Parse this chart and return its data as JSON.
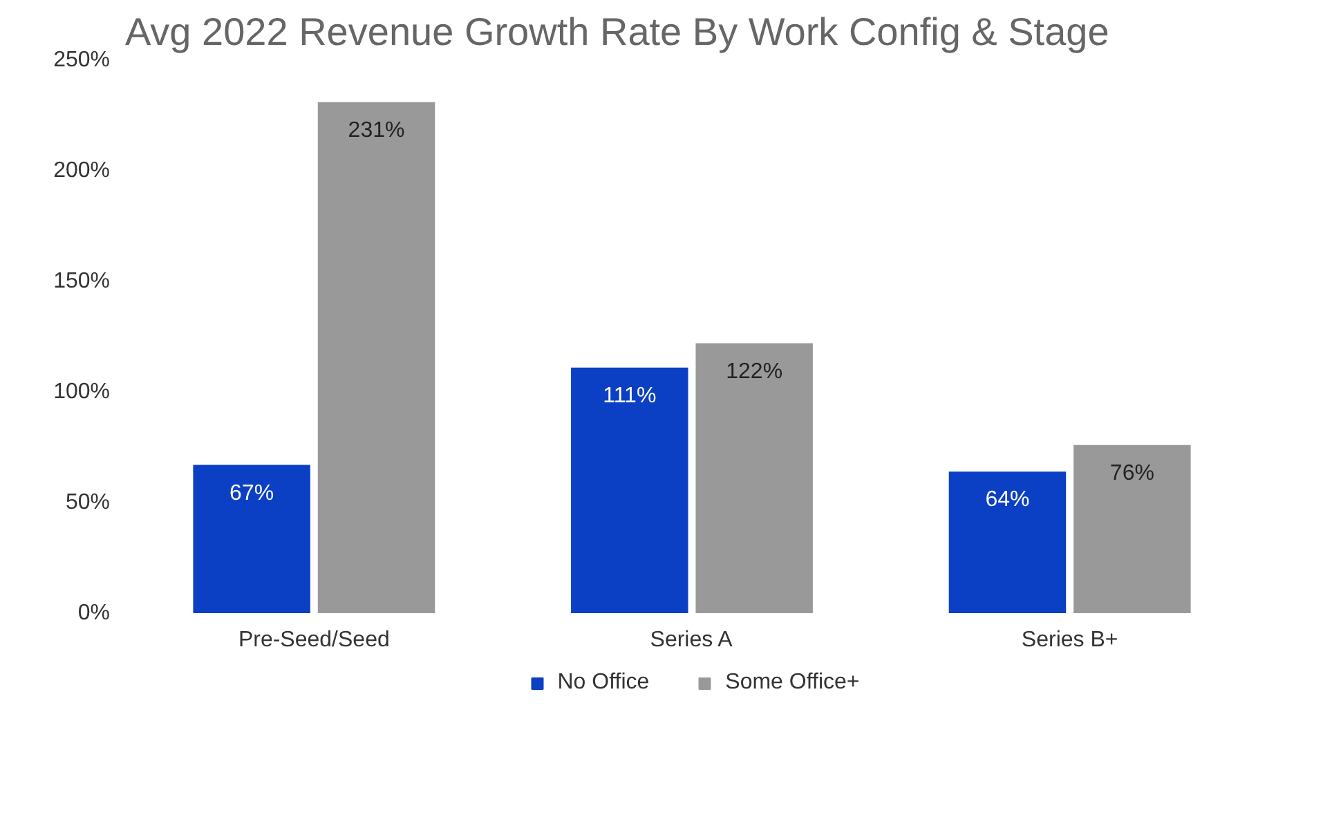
{
  "chart_data": {
    "type": "bar",
    "title": "Avg 2022 Revenue Growth Rate By Work Config & Stage",
    "categories": [
      "Pre-Seed/Seed",
      "Series A",
      "Series B+"
    ],
    "series": [
      {
        "name": "No Office",
        "color": "#0b3fc4",
        "values": [
          67,
          111,
          64
        ],
        "value_labels": [
          "67%",
          "111%",
          "64%"
        ]
      },
      {
        "name": "Some Office+",
        "color": "#999999",
        "values": [
          231,
          122,
          76
        ],
        "value_labels": [
          "231%",
          "122%",
          "76%"
        ]
      }
    ],
    "ylim": [
      0,
      250
    ],
    "yticks": [
      {
        "value": 0,
        "label": "0%"
      },
      {
        "value": 50,
        "label": "50%"
      },
      {
        "value": 100,
        "label": "100%"
      },
      {
        "value": 150,
        "label": "150%"
      },
      {
        "value": 200,
        "label": "200%"
      },
      {
        "value": 250,
        "label": "250%"
      }
    ],
    "grid": false,
    "legend": "bottom"
  }
}
